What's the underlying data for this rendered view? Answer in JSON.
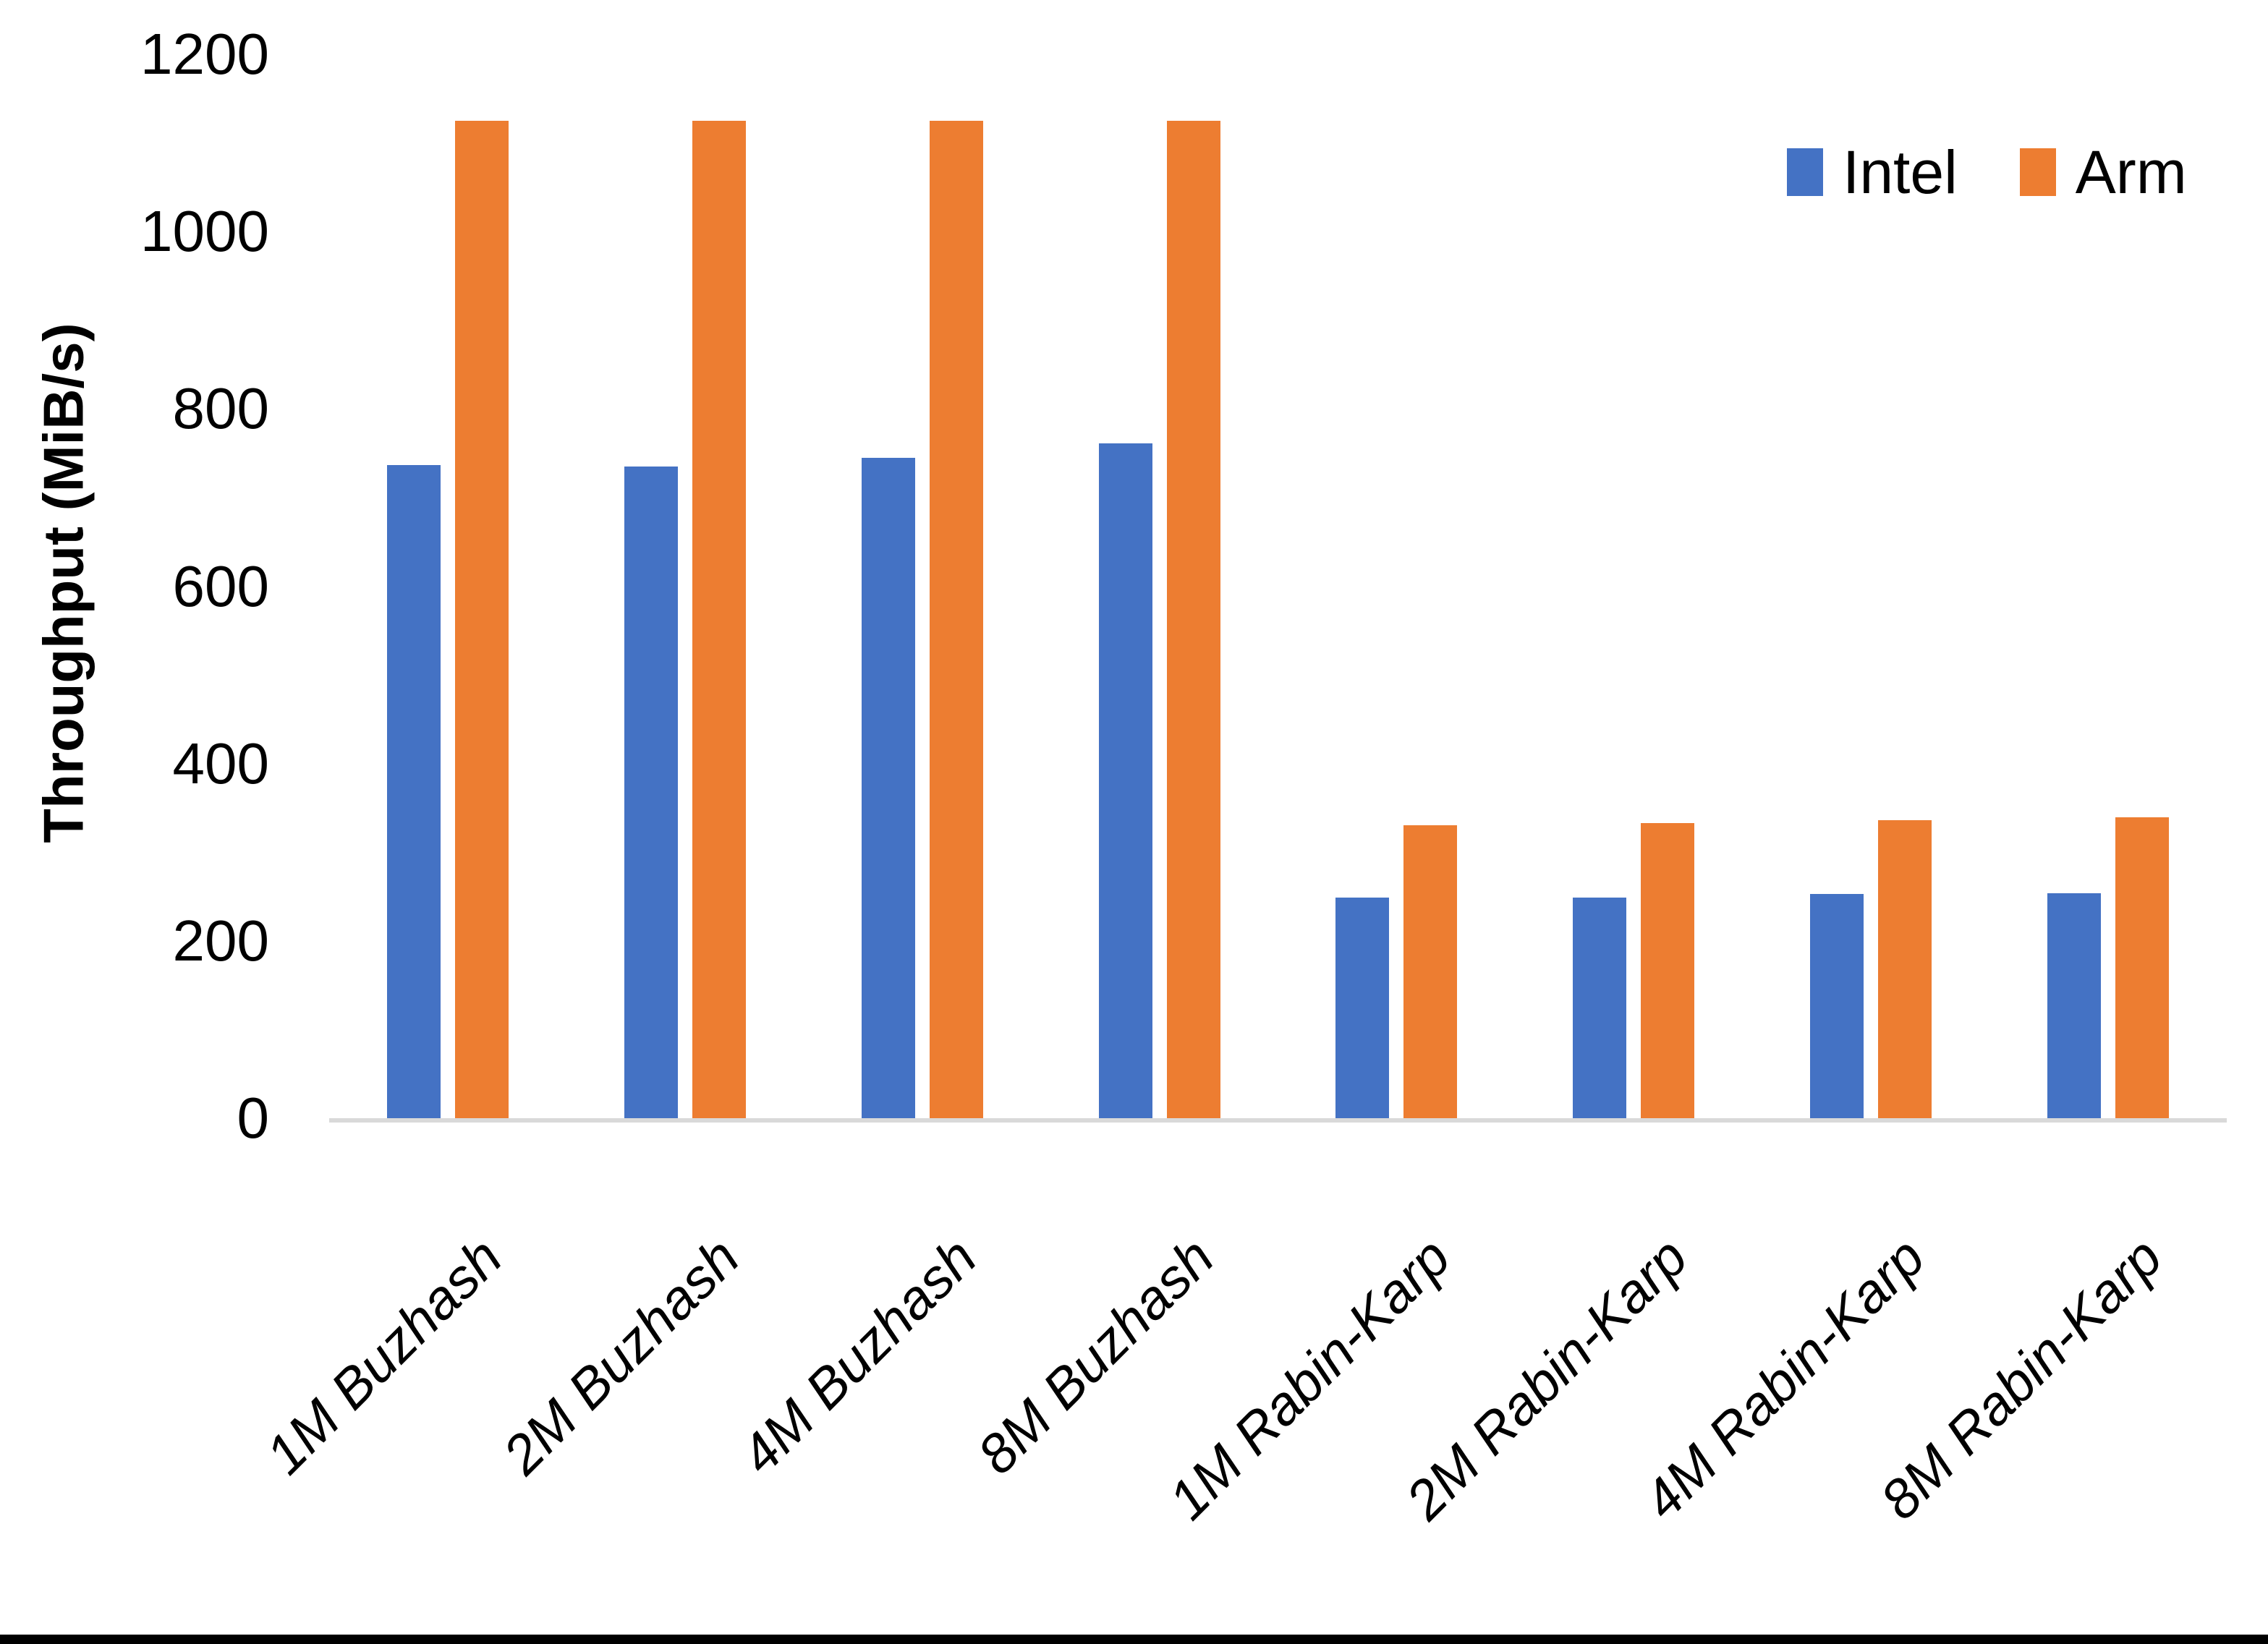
{
  "chart_data": {
    "type": "bar",
    "title": "",
    "ylabel": "Throughput (MiB/s)",
    "xlabel": "",
    "categories": [
      "1M Buzhash",
      "2M Buzhash",
      "4M Buzhash",
      "8M Buzhash",
      "1M Rabin-Karp",
      "2M Rabin-Karp",
      "4M Rabin-Karp",
      "8M Rabin-Karp"
    ],
    "series": [
      {
        "name": "Intel",
        "color": "#4472C4",
        "values": [
          737,
          735,
          745,
          761,
          249,
          249,
          253,
          254
        ]
      },
      {
        "name": "Arm",
        "color": "#ED7D31",
        "values": [
          1125,
          1125,
          1125,
          1125,
          330,
          333,
          336,
          339
        ]
      }
    ],
    "ylim": [
      0,
      1200
    ],
    "yticks": [
      0,
      200,
      400,
      600,
      800,
      1000,
      1200
    ],
    "grid": false,
    "legend_position": "top-right"
  },
  "colors": {
    "background": "#FFFFFF",
    "axis_line": "#D9D9D9",
    "text": "#000000",
    "bottom_bar": "#000000"
  }
}
